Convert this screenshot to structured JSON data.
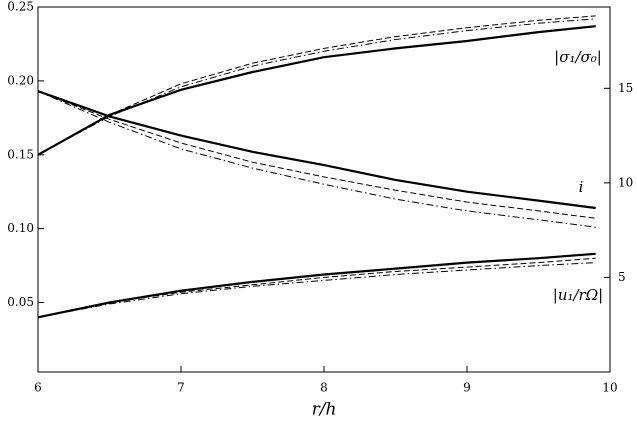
{
  "chart_data": {
    "type": "line",
    "x_label": "r/h",
    "x": [
      6,
      6.5,
      7,
      7.5,
      8,
      8.5,
      9,
      9.5,
      9.9
    ],
    "series": [
      {
        "color": "#000000",
        "style": "solid",
        "values": [
          0.15,
          0.177,
          0.194,
          0.206,
          0.216,
          0.222,
          0.227,
          0.233,
          0.237
        ]
      },
      {
        "color": "#000000",
        "style": "dashed",
        "values": [
          0.15,
          0.177,
          0.198,
          0.212,
          0.222,
          0.23,
          0.236,
          0.241,
          0.244
        ]
      },
      {
        "color": "#000000",
        "style": "dashdot",
        "values": [
          0.15,
          0.176,
          0.196,
          0.21,
          0.22,
          0.228,
          0.234,
          0.239,
          0.242
        ]
      },
      {
        "color": "#000000",
        "style": "solid",
        "values": [
          0.193,
          0.176,
          0.163,
          0.152,
          0.143,
          0.133,
          0.125,
          0.119,
          0.114
        ]
      },
      {
        "color": "#000000",
        "style": "dashed",
        "values": [
          0.193,
          0.174,
          0.158,
          0.145,
          0.135,
          0.126,
          0.118,
          0.112,
          0.107
        ]
      },
      {
        "color": "#000000",
        "style": "dashdot",
        "values": [
          0.193,
          0.172,
          0.154,
          0.141,
          0.13,
          0.12,
          0.112,
          0.106,
          0.101
        ]
      },
      {
        "color": "#000000",
        "style": "solid",
        "values": [
          0.04,
          0.05,
          0.058,
          0.064,
          0.069,
          0.073,
          0.077,
          0.08,
          0.083
        ]
      },
      {
        "color": "#000000",
        "style": "dashed",
        "values": [
          0.04,
          0.05,
          0.057,
          0.062,
          0.067,
          0.071,
          0.074,
          0.077,
          0.08
        ]
      },
      {
        "color": "#000000",
        "style": "dashdot",
        "values": [
          0.04,
          0.049,
          0.056,
          0.061,
          0.065,
          0.069,
          0.072,
          0.075,
          0.077
        ]
      }
    ],
    "annotations": [
      "|σ₁/σ₀|",
      "i",
      "|u₁/rΩ|"
    ],
    "xlim": [
      6,
      10
    ],
    "xticks": [
      6,
      7,
      8,
      9,
      10
    ],
    "ylim": [
      0.003,
      0.25
    ],
    "yticks": [
      0.05,
      {
        "value": 0.1,
        "label": "0.10"
      },
      0.15,
      {
        "value": 0.2,
        "label": "0.20"
      },
      0.25
    ],
    "y2lim": [
      0,
      19.3
    ],
    "y2ticks": [
      5,
      10,
      15
    ]
  }
}
